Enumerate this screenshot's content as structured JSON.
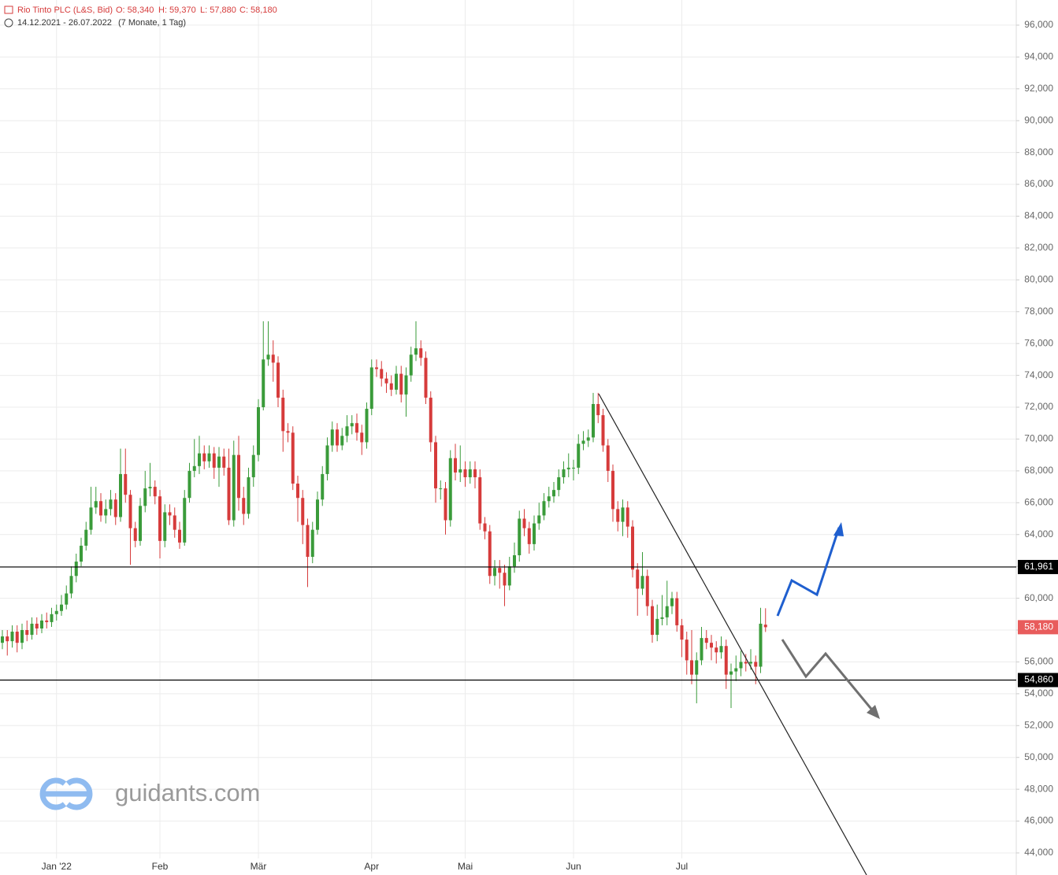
{
  "header": {
    "title": "Rio Tinto PLC (L&S, Bid)",
    "ohlc": [
      "O: 58,340",
      "H: 59,370",
      "L: 57,880",
      "C: 58,180"
    ],
    "range": "14.12.2021 - 26.07.2022",
    "period": "(7 Monate, 1 Tag)"
  },
  "watermark": "guidants.com",
  "chart_data": {
    "type": "candlestick",
    "categories": [
      null,
      null,
      null,
      null,
      null,
      null,
      null,
      null,
      null,
      null,
      null,
      "Jan '22",
      null,
      null,
      null,
      null,
      null,
      null,
      null,
      null,
      null,
      null,
      null,
      null,
      null,
      null,
      null,
      null,
      null,
      null,
      null,
      null,
      "Feb",
      null,
      null,
      null,
      null,
      null,
      null,
      null,
      null,
      null,
      null,
      null,
      null,
      null,
      null,
      null,
      null,
      null,
      null,
      null,
      "Mär",
      null,
      null,
      null,
      null,
      null,
      null,
      null,
      null,
      null,
      null,
      null,
      null,
      null,
      null,
      null,
      null,
      null,
      null,
      null,
      null,
      null,
      null,
      "Apr",
      null,
      null,
      null,
      null,
      null,
      null,
      null,
      null,
      null,
      null,
      null,
      null,
      null,
      null,
      null,
      null,
      null,
      null,
      "Mai",
      null,
      null,
      null,
      null,
      null,
      null,
      null,
      null,
      null,
      null,
      null,
      null,
      null,
      null,
      null,
      null,
      null,
      null,
      null,
      null,
      null,
      "Jun",
      null,
      null,
      null,
      null,
      null,
      null,
      null,
      null,
      null,
      null,
      null,
      null,
      null,
      null,
      null,
      null,
      null,
      null,
      null,
      null,
      null,
      "Jul",
      null,
      null,
      null,
      null,
      null,
      null,
      null,
      null,
      null,
      null,
      null,
      null,
      null,
      null,
      null,
      null,
      null
    ],
    "open": [
      57.2,
      57.6,
      57.3,
      57.9,
      57.2,
      58.0,
      57.7,
      58.4,
      58.1,
      58.6,
      58.5,
      59.0,
      59.2,
      59.6,
      60.3,
      61.4,
      62.3,
      63.3,
      64.3,
      65.7,
      66.1,
      65.2,
      65.6,
      66.2,
      65.1,
      67.8,
      66.5,
      64.4,
      63.6,
      65.8,
      66.9,
      67.0,
      66.4,
      63.6,
      65.4,
      65.2,
      64.3,
      63.5,
      66.3,
      68.0,
      68.3,
      69.1,
      68.6,
      69.1,
      68.2,
      68.9,
      68.2,
      64.9,
      69.0,
      66.3,
      65.3,
      67.6,
      69.0,
      72.0,
      75.0,
      75.3,
      74.8,
      72.6,
      70.5,
      70.4,
      67.2,
      66.3,
      64.6,
      62.6,
      64.3,
      66.2,
      67.8,
      69.6,
      70.6,
      69.6,
      70.2,
      70.8,
      71.0,
      70.4,
      69.8,
      71.9,
      74.5,
      74.4,
      73.8,
      73.5,
      73.1,
      74.1,
      72.8,
      74.0,
      75.3,
      75.7,
      75.1,
      72.6,
      69.8,
      66.9,
      66.9,
      64.9,
      68.8,
      67.9,
      68.1,
      67.6,
      68.1,
      67.6,
      64.7,
      64.2,
      61.4,
      61.9,
      61.6,
      60.8,
      62.0,
      62.7,
      65.0,
      64.4,
      63.4,
      64.7,
      65.2,
      66.1,
      66.4,
      66.8,
      67.6,
      68.1,
      68.2,
      68.2,
      69.7,
      69.9,
      70.1,
      72.2,
      71.5,
      69.6,
      68.0,
      65.6,
      64.8,
      65.7,
      64.5,
      61.8,
      60.6,
      61.4,
      59.5,
      57.7,
      58.7,
      58.8,
      59.5,
      60.0,
      58.3,
      57.4,
      56.1,
      55.2,
      56.1,
      57.5,
      57.2,
      56.9,
      56.6,
      57.0,
      55.2,
      55.4,
      55.6,
      56.0,
      55.9,
      56.0,
      55.7,
      58.34
    ],
    "high": [
      58.0,
      58.0,
      58.3,
      58.3,
      58.4,
      58.6,
      58.8,
      58.8,
      59.0,
      59.1,
      59.4,
      59.6,
      60.2,
      60.8,
      62.0,
      62.8,
      63.8,
      64.8,
      67.0,
      67.0,
      66.6,
      66.2,
      66.8,
      66.6,
      69.4,
      69.4,
      66.8,
      64.8,
      66.3,
      68.0,
      68.5,
      67.4,
      66.8,
      65.9,
      65.9,
      65.7,
      64.8,
      66.8,
      68.5,
      70.0,
      70.2,
      69.6,
      69.6,
      69.5,
      69.5,
      69.4,
      69.4,
      69.9,
      70.2,
      67.0,
      68.2,
      69.6,
      72.5,
      77.4,
      77.4,
      76.2,
      75.2,
      73.1,
      71.0,
      70.8,
      67.7,
      66.8,
      65.0,
      64.8,
      66.7,
      68.3,
      70.1,
      71.1,
      71.0,
      70.7,
      71.5,
      71.5,
      71.6,
      70.9,
      72.3,
      75.0,
      75.0,
      74.9,
      74.2,
      74.0,
      74.6,
      74.6,
      74.5,
      75.8,
      77.4,
      76.2,
      75.5,
      73.0,
      70.2,
      67.4,
      67.3,
      69.3,
      69.7,
      69.6,
      68.6,
      68.6,
      68.6,
      68.1,
      65.1,
      64.6,
      62.4,
      62.4,
      62.1,
      62.6,
      63.5,
      65.5,
      65.6,
      64.8,
      65.2,
      66.0,
      66.6,
      67.0,
      67.3,
      68.1,
      68.6,
      69.1,
      68.7,
      70.3,
      70.5,
      70.6,
      72.9,
      72.9,
      71.9,
      70.0,
      68.4,
      66.1,
      66.2,
      66.1,
      64.9,
      62.2,
      62.9,
      61.8,
      59.9,
      59.6,
      60.2,
      61.1,
      60.4,
      60.4,
      58.7,
      57.9,
      58.0,
      56.6,
      58.2,
      58.0,
      57.7,
      57.3,
      57.6,
      57.4,
      55.9,
      56.4,
      56.7,
      56.5,
      56.8,
      56.4,
      59.4,
      59.37
    ],
    "low": [
      56.8,
      56.4,
      56.9,
      56.6,
      56.8,
      57.3,
      57.4,
      57.7,
      57.8,
      58.1,
      58.2,
      58.6,
      58.9,
      59.3,
      60.0,
      61.0,
      62.0,
      63.0,
      64.0,
      65.3,
      64.8,
      64.7,
      65.2,
      64.6,
      64.8,
      66.0,
      62.1,
      63.2,
      63.3,
      65.4,
      66.4,
      65.9,
      62.5,
      63.2,
      64.6,
      63.8,
      63.1,
      63.3,
      66.0,
      67.6,
      67.8,
      68.1,
      68.2,
      67.5,
      67.0,
      67.7,
      64.6,
      64.5,
      65.5,
      64.6,
      65.0,
      67.0,
      68.6,
      71.8,
      74.6,
      73.6,
      72.0,
      69.2,
      69.8,
      66.8,
      64.8,
      63.4,
      60.7,
      62.2,
      64.0,
      65.8,
      67.4,
      69.2,
      69.2,
      69.3,
      69.8,
      70.3,
      69.9,
      69.0,
      69.4,
      71.5,
      73.9,
      73.3,
      72.9,
      72.7,
      72.8,
      72.3,
      71.4,
      73.6,
      74.9,
      74.6,
      72.2,
      69.2,
      66.0,
      66.2,
      64.0,
      64.5,
      67.4,
      67.3,
      67.0,
      67.2,
      66.9,
      64.3,
      63.7,
      60.9,
      60.8,
      60.6,
      59.5,
      60.5,
      61.6,
      62.3,
      63.9,
      62.8,
      63.0,
      64.3,
      64.9,
      65.7,
      66.0,
      66.4,
      67.2,
      67.6,
      67.4,
      67.8,
      69.3,
      69.5,
      69.8,
      71.0,
      69.2,
      67.3,
      64.8,
      64.2,
      63.9,
      63.8,
      61.3,
      58.9,
      60.2,
      58.9,
      57.2,
      57.3,
      58.3,
      58.3,
      59.0,
      57.9,
      56.3,
      55.2,
      54.6,
      53.4,
      55.8,
      56.8,
      56.1,
      55.9,
      56.2,
      54.3,
      53.1,
      54.8,
      55.1,
      55.4,
      55.5,
      54.6,
      55.3,
      57.88
    ],
    "close": [
      57.6,
      57.3,
      57.9,
      57.2,
      58.0,
      57.7,
      58.4,
      58.1,
      58.6,
      58.5,
      59.0,
      59.2,
      59.6,
      60.3,
      61.4,
      62.3,
      63.3,
      64.3,
      65.7,
      66.1,
      65.2,
      65.6,
      66.2,
      65.1,
      67.8,
      66.5,
      64.4,
      63.6,
      65.8,
      66.9,
      67.0,
      66.4,
      63.6,
      65.4,
      65.2,
      64.3,
      63.5,
      66.3,
      68.0,
      68.3,
      69.1,
      68.6,
      69.1,
      68.2,
      68.9,
      68.2,
      64.9,
      69.0,
      66.3,
      65.3,
      67.6,
      69.0,
      72.0,
      75.0,
      75.3,
      74.8,
      72.6,
      70.5,
      70.4,
      67.2,
      66.3,
      64.6,
      62.6,
      64.3,
      66.2,
      67.8,
      69.6,
      70.6,
      69.6,
      70.2,
      70.8,
      71.0,
      70.4,
      69.8,
      71.9,
      74.5,
      74.4,
      73.8,
      73.5,
      73.1,
      74.1,
      72.8,
      74.0,
      75.3,
      75.7,
      75.1,
      72.6,
      69.8,
      66.9,
      66.9,
      64.9,
      68.8,
      67.9,
      68.1,
      67.6,
      68.1,
      67.6,
      64.7,
      64.2,
      61.4,
      61.9,
      61.6,
      60.8,
      62.0,
      62.7,
      65.0,
      64.4,
      63.4,
      64.7,
      65.2,
      66.1,
      66.4,
      66.8,
      67.6,
      68.1,
      68.2,
      68.2,
      69.7,
      69.9,
      70.1,
      72.2,
      71.5,
      69.6,
      68.0,
      65.6,
      64.8,
      65.7,
      64.5,
      61.8,
      60.6,
      61.4,
      59.5,
      57.7,
      58.7,
      58.8,
      59.5,
      60.0,
      58.3,
      57.4,
      56.1,
      55.2,
      56.1,
      57.5,
      57.2,
      56.9,
      56.6,
      57.0,
      55.2,
      55.4,
      55.6,
      56.0,
      55.9,
      56.0,
      55.7,
      58.4,
      58.18
    ],
    "up_color": "#3a9b3a",
    "down_color": "#d63b3b",
    "ylim": [
      43.9,
      97.58
    ],
    "yticks": [
      {
        "value": 44,
        "label": "44,000"
      },
      {
        "value": 46,
        "label": "46,000"
      },
      {
        "value": 48,
        "label": "48,000"
      },
      {
        "value": 50,
        "label": "50,000"
      },
      {
        "value": 52,
        "label": "52,000"
      },
      {
        "value": 54,
        "label": "54,000"
      },
      {
        "value": 56,
        "label": "56,000"
      },
      {
        "value": 58,
        "label": "58,000"
      },
      {
        "value": 60,
        "label": "60,000"
      },
      {
        "value": 62,
        "label": "62,000"
      },
      {
        "value": 64,
        "label": "64,000"
      },
      {
        "value": 66,
        "label": "66,000"
      },
      {
        "value": 68,
        "label": "68,000"
      },
      {
        "value": 70,
        "label": "70,000"
      },
      {
        "value": 72,
        "label": "72,000"
      },
      {
        "value": 74,
        "label": "74,000"
      },
      {
        "value": 76,
        "label": "76,000"
      },
      {
        "value": 78,
        "label": "78,000"
      },
      {
        "value": 80,
        "label": "80,000"
      },
      {
        "value": 82,
        "label": "82,000"
      },
      {
        "value": 84,
        "label": "84,000"
      },
      {
        "value": 86,
        "label": "86,000"
      },
      {
        "value": 88,
        "label": "88,000"
      },
      {
        "value": 90,
        "label": "90,000"
      },
      {
        "value": 92,
        "label": "92,000"
      },
      {
        "value": 94,
        "label": "94,000"
      },
      {
        "value": 96,
        "label": "96,000"
      }
    ],
    "grid": true,
    "levels": [
      {
        "value": 61.961,
        "label": "61,961"
      },
      {
        "value": 54.86,
        "label": "54,860"
      }
    ],
    "last_price": {
      "value": 58.18,
      "label": "58,180"
    }
  }
}
